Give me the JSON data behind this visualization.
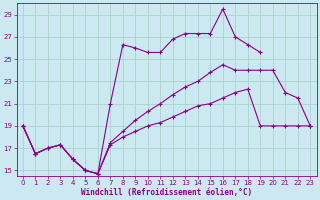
{
  "xlabel": "Windchill (Refroidissement éolien,°C)",
  "background_color": "#cce8f0",
  "grid_color": "#aad4cc",
  "line_color": "#880088",
  "xlim": [
    -0.5,
    23.5
  ],
  "ylim": [
    14.5,
    30
  ],
  "yticks": [
    15,
    17,
    19,
    21,
    23,
    25,
    27,
    29
  ],
  "xticks": [
    0,
    1,
    2,
    3,
    4,
    5,
    6,
    7,
    8,
    9,
    10,
    11,
    12,
    13,
    14,
    15,
    16,
    17,
    18,
    19,
    20,
    21,
    22,
    23
  ],
  "series": [
    [
      19,
      16.5,
      17,
      17.3,
      16.0,
      15.0,
      14.7,
      21.0,
      26.3,
      26.0,
      25.6,
      25.6,
      26.8,
      27.3,
      27.3,
      27.3,
      29.5,
      27.0,
      26.3,
      25.6,
      null,
      null,
      null,
      19.0
    ],
    [
      19,
      16.5,
      17,
      17.3,
      16.0,
      15.0,
      14.7,
      17.5,
      18.5,
      19.5,
      20.3,
      21.0,
      21.8,
      22.5,
      23.0,
      23.8,
      24.5,
      24.0,
      24.0,
      24.0,
      24.0,
      22.0,
      21.5,
      19.0
    ],
    [
      19,
      16.5,
      17,
      17.3,
      16.0,
      15.0,
      14.7,
      17.3,
      18.0,
      18.5,
      19.0,
      19.3,
      19.8,
      20.3,
      20.8,
      21.0,
      21.5,
      22.0,
      22.3,
      19.0,
      19.0,
      19.0,
      19.0,
      19.0
    ]
  ]
}
